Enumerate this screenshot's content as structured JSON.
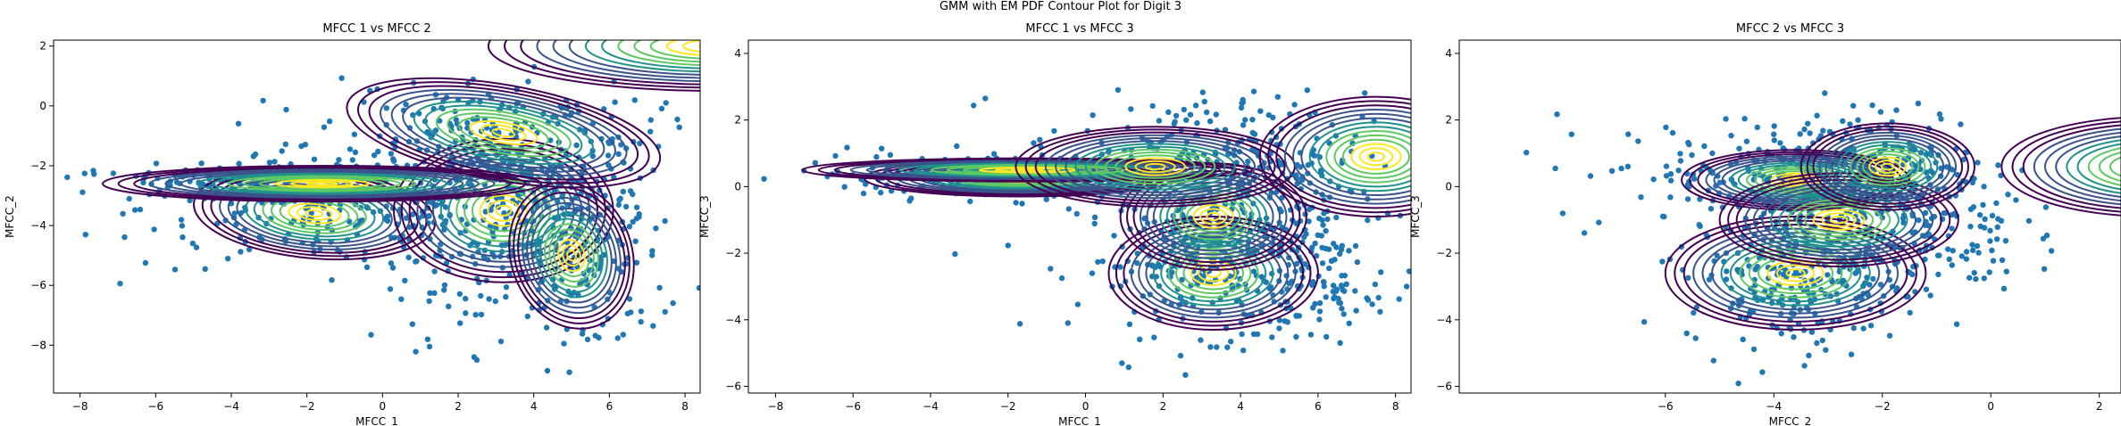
{
  "figure_title": "GMM with EM PDF Contour Plot for Digit 3",
  "colors": {
    "points": "#1f77b4",
    "colormap": [
      "#440154",
      "#3b528b",
      "#21918c",
      "#5ec962",
      "#fde725"
    ]
  },
  "chart_data": [
    {
      "type": "scatter",
      "title": "MFCC 1 vs MFCC 2",
      "xlabel": "MFCC_1",
      "ylabel": "MFCC_2",
      "xlim": [
        -8.7,
        8.4
      ],
      "ylim": [
        -9.6,
        2.2
      ],
      "xticks": [
        -8,
        -6,
        -4,
        -2,
        0,
        2,
        4,
        6,
        8
      ],
      "yticks": [
        -8,
        -6,
        -4,
        -2,
        0,
        2
      ],
      "grid": false,
      "overlay": "contour",
      "gaussians": [
        {
          "mean": [
            -1.8,
            -3.6
          ],
          "sd": [
            3.2,
            1.5
          ],
          "rot": -5
        },
        {
          "mean": [
            3.2,
            -3.5
          ],
          "sd": [
            2.9,
            2.4
          ],
          "rot": 0
        },
        {
          "mean": [
            -1.6,
            -2.6
          ],
          "sd": [
            5.8,
            0.6
          ],
          "rot": 0
        },
        {
          "mean": [
            5.0,
            -5.0
          ],
          "sd": [
            1.6,
            2.5
          ],
          "rot": 20
        },
        {
          "mean": [
            3.2,
            -0.9
          ],
          "sd": [
            4.2,
            1.6
          ],
          "rot": -10
        },
        {
          "mean": [
            8.8,
            2.0
          ],
          "sd": [
            6.0,
            1.5
          ],
          "rot": 0
        }
      ],
      "scatter_clusters": [
        {
          "mean": [
            3.2,
            -3.3
          ],
          "sd": [
            1.9,
            1.4
          ],
          "n": 320
        },
        {
          "mean": [
            -1.5,
            -3.4
          ],
          "sd": [
            2.4,
            1.0
          ],
          "n": 200
        },
        {
          "mean": [
            -4.0,
            -2.6
          ],
          "sd": [
            2.3,
            0.3
          ],
          "n": 120
        },
        {
          "mean": [
            2.6,
            -0.8
          ],
          "sd": [
            2.2,
            0.9
          ],
          "n": 160
        },
        {
          "mean": [
            5.4,
            -4.9
          ],
          "sd": [
            1.0,
            1.8
          ],
          "n": 110
        },
        {
          "mean": [
            3.5,
            -6.5
          ],
          "sd": [
            1.7,
            0.9
          ],
          "n": 50
        }
      ]
    },
    {
      "type": "scatter",
      "title": "MFCC 1 vs MFCC 3",
      "xlabel": "MFCC_1",
      "ylabel": "MFCC_3",
      "xlim": [
        -8.7,
        8.4
      ],
      "ylim": [
        -6.2,
        4.4
      ],
      "xticks": [
        -8,
        -6,
        -4,
        -2,
        0,
        2,
        4,
        6,
        8
      ],
      "yticks": [
        -6,
        -4,
        -2,
        0,
        2,
        4
      ],
      "grid": false,
      "overlay": "contour",
      "gaussians": [
        {
          "mean": [
            -1.7,
            0.25
          ],
          "sd": [
            4.0,
            0.55
          ],
          "rot": 0
        },
        {
          "mean": [
            3.3,
            -2.6
          ],
          "sd": [
            2.7,
            1.7
          ],
          "rot": 0
        },
        {
          "mean": [
            3.3,
            -0.9
          ],
          "sd": [
            2.4,
            1.6
          ],
          "rot": 0
        },
        {
          "mean": [
            -1.5,
            0.5
          ],
          "sd": [
            5.8,
            0.35
          ],
          "rot": 0
        },
        {
          "mean": [
            1.8,
            0.6
          ],
          "sd": [
            3.6,
            1.2
          ],
          "rot": 0
        },
        {
          "mean": [
            7.5,
            0.9
          ],
          "sd": [
            3.0,
            1.8
          ],
          "rot": 0
        }
      ],
      "scatter_clusters": [
        {
          "mean": [
            3.4,
            -2.2
          ],
          "sd": [
            1.8,
            1.1
          ],
          "n": 300
        },
        {
          "mean": [
            -2.0,
            0.3
          ],
          "sd": [
            2.8,
            0.35
          ],
          "n": 220
        },
        {
          "mean": [
            2.8,
            1.0
          ],
          "sd": [
            2.2,
            0.9
          ],
          "n": 170
        },
        {
          "mean": [
            4.8,
            -0.5
          ],
          "sd": [
            1.4,
            1.4
          ],
          "n": 150
        },
        {
          "mean": [
            6.0,
            -3.2
          ],
          "sd": [
            0.9,
            0.8
          ],
          "n": 60
        }
      ]
    },
    {
      "type": "scatter",
      "title": "MFCC 2 vs MFCC 3",
      "xlabel": "MFCC_2",
      "ylabel": "MFCC_3",
      "xlim": [
        -9.8,
        2.4
      ],
      "ylim": [
        -6.2,
        4.4
      ],
      "xticks": [
        -6,
        -4,
        -2,
        0,
        2
      ],
      "yticks": [
        -6,
        -4,
        -2,
        0,
        2,
        4
      ],
      "grid": false,
      "overlay": "contour",
      "gaussians": [
        {
          "mean": [
            -3.6,
            -2.6
          ],
          "sd": [
            2.4,
            1.7
          ],
          "rot": 0
        },
        {
          "mean": [
            -3.6,
            0.2
          ],
          "sd": [
            2.1,
            0.9
          ],
          "rot": 0
        },
        {
          "mean": [
            -2.8,
            -1.0
          ],
          "sd": [
            2.2,
            1.4
          ],
          "rot": 0
        },
        {
          "mean": [
            -1.9,
            0.6
          ],
          "sd": [
            1.6,
            1.3
          ],
          "rot": 0
        },
        {
          "mean": [
            3.0,
            0.6
          ],
          "sd": [
            2.8,
            1.5
          ],
          "rot": 0
        }
      ],
      "scatter_clusters": [
        {
          "mean": [
            -3.6,
            -2.6
          ],
          "sd": [
            1.0,
            1.1
          ],
          "n": 280
        },
        {
          "mean": [
            -3.5,
            0.3
          ],
          "sd": [
            1.2,
            0.7
          ],
          "n": 220
        },
        {
          "mean": [
            -2.0,
            0.7
          ],
          "sd": [
            1.0,
            0.8
          ],
          "n": 180
        },
        {
          "mean": [
            -1.2,
            -1.4
          ],
          "sd": [
            0.9,
            0.9
          ],
          "n": 130
        },
        {
          "mean": [
            -5.8,
            0.5
          ],
          "sd": [
            1.5,
            0.8
          ],
          "n": 40
        }
      ]
    }
  ]
}
